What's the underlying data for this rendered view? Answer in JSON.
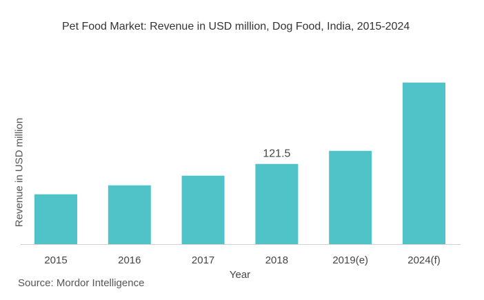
{
  "chart_data": {
    "type": "bar",
    "title": "Pet Food Market: Revenue in USD million, Dog Food, India, 2015-2024",
    "xlabel": "Year",
    "ylabel": "Revenue in USD million",
    "categories": [
      "2015",
      "2016",
      "2017",
      "2018",
      "2019(e)",
      "2024(f)"
    ],
    "values": [
      75.5,
      89.1,
      103.7,
      121.5,
      141.3,
      244.8
    ],
    "data_labels": [
      null,
      null,
      null,
      "121.5",
      null,
      null
    ],
    "ylim": [
      0,
      250
    ],
    "grid": false,
    "bar_color": "#4fc3c7"
  },
  "source": "Source: Mordor Intelligence"
}
